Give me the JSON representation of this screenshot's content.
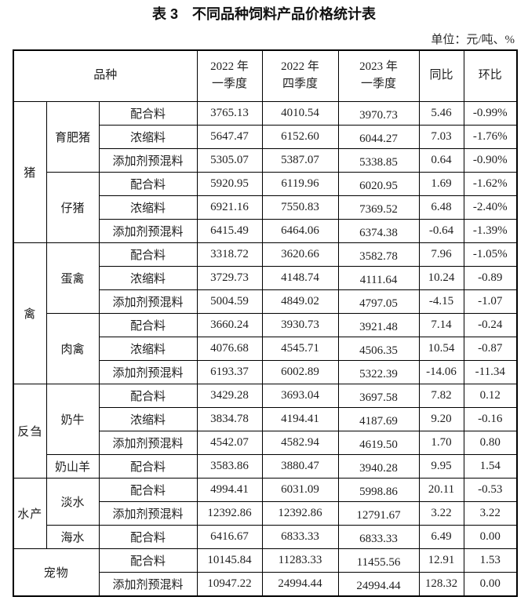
{
  "title": "表 3　不同品种饲料产品价格统计表",
  "unit_label": "单位：元/吨、%",
  "colors": {
    "text": "#1f1f1f",
    "border": "#000000",
    "background": "#ffffff"
  },
  "table": {
    "headers": {
      "variety": "品种",
      "q1_2022": "2022 年\n一季度",
      "q4_2022": "2022 年\n四季度",
      "q1_2023": "2023 年\n一季度",
      "yoy": "同比",
      "qoq": "环比"
    },
    "groups": [
      {
        "name": "猪",
        "subgroups": [
          {
            "name": "育肥猪",
            "rows": [
              {
                "product": "配合料",
                "q1_2022": "3765.13",
                "q4_2022": "4010.54",
                "q1_2023": "3970.73",
                "yoy": "5.46",
                "qoq": "-0.99%"
              },
              {
                "product": "浓缩料",
                "q1_2022": "5647.47",
                "q4_2022": "6152.60",
                "q1_2023": "6044.27",
                "yoy": "7.03",
                "qoq": "-1.76%"
              },
              {
                "product": "添加剂预混料",
                "q1_2022": "5305.07",
                "q4_2022": "5387.07",
                "q1_2023": "5338.85",
                "yoy": "0.64",
                "qoq": "-0.90%"
              }
            ]
          },
          {
            "name": "仔猪",
            "rows": [
              {
                "product": "配合料",
                "q1_2022": "5920.95",
                "q4_2022": "6119.96",
                "q1_2023": "6020.95",
                "yoy": "1.69",
                "qoq": "-1.62%"
              },
              {
                "product": "浓缩料",
                "q1_2022": "6921.16",
                "q4_2022": "7550.83",
                "q1_2023": "7369.52",
                "yoy": "6.48",
                "qoq": "-2.40%"
              },
              {
                "product": "添加剂预混料",
                "q1_2022": "6415.49",
                "q4_2022": "6464.06",
                "q1_2023": "6374.38",
                "yoy": "-0.64",
                "qoq": "-1.39%"
              }
            ]
          }
        ]
      },
      {
        "name": "禽",
        "subgroups": [
          {
            "name": "蛋禽",
            "rows": [
              {
                "product": "配合料",
                "q1_2022": "3318.72",
                "q4_2022": "3620.66",
                "q1_2023": "3582.78",
                "yoy": "7.96",
                "qoq": "-1.05%"
              },
              {
                "product": "浓缩料",
                "q1_2022": "3729.73",
                "q4_2022": "4148.74",
                "q1_2023": "4111.64",
                "yoy": "10.24",
                "qoq": "-0.89"
              },
              {
                "product": "添加剂预混料",
                "q1_2022": "5004.59",
                "q4_2022": "4849.02",
                "q1_2023": "4797.05",
                "yoy": "-4.15",
                "qoq": "-1.07"
              }
            ]
          },
          {
            "name": "肉禽",
            "rows": [
              {
                "product": "配合料",
                "q1_2022": "3660.24",
                "q4_2022": "3930.73",
                "q1_2023": "3921.48",
                "yoy": "7.14",
                "qoq": "-0.24"
              },
              {
                "product": "浓缩料",
                "q1_2022": "4076.68",
                "q4_2022": "4545.71",
                "q1_2023": "4506.35",
                "yoy": "10.54",
                "qoq": "-0.87"
              },
              {
                "product": "添加剂预混料",
                "q1_2022": "6193.37",
                "q4_2022": "6002.89",
                "q1_2023": "5322.39",
                "yoy": "-14.06",
                "qoq": "-11.34"
              }
            ]
          }
        ]
      },
      {
        "name": "反刍",
        "subgroups": [
          {
            "name": "奶牛",
            "rows": [
              {
                "product": "配合料",
                "q1_2022": "3429.28",
                "q4_2022": "3693.04",
                "q1_2023": "3697.58",
                "yoy": "7.82",
                "qoq": "0.12"
              },
              {
                "product": "浓缩料",
                "q1_2022": "3834.78",
                "q4_2022": "4194.41",
                "q1_2023": "4187.69",
                "yoy": "9.20",
                "qoq": "-0.16"
              },
              {
                "product": "添加剂预混料",
                "q1_2022": "4542.07",
                "q4_2022": "4582.94",
                "q1_2023": "4619.50",
                "yoy": "1.70",
                "qoq": "0.80"
              }
            ]
          },
          {
            "name": "奶山羊",
            "rows": [
              {
                "product": "配合料",
                "q1_2022": "3583.86",
                "q4_2022": "3880.47",
                "q1_2023": "3940.28",
                "yoy": "9.95",
                "qoq": "1.54"
              }
            ]
          }
        ]
      },
      {
        "name": "水产",
        "subgroups": [
          {
            "name": "淡水",
            "rows": [
              {
                "product": "配合料",
                "q1_2022": "4994.41",
                "q4_2022": "6031.09",
                "q1_2023": "5998.86",
                "yoy": "20.11",
                "qoq": "-0.53"
              },
              {
                "product": "添加剂预混料",
                "q1_2022": "12392.86",
                "q4_2022": "12392.86",
                "q1_2023": "12791.67",
                "yoy": "3.22",
                "qoq": "3.22"
              }
            ]
          },
          {
            "name": "海水",
            "rows": [
              {
                "product": "配合料",
                "q1_2022": "6416.67",
                "q4_2022": "6833.33",
                "q1_2023": "6833.33",
                "yoy": "6.49",
                "qoq": "0.00"
              }
            ]
          }
        ]
      },
      {
        "name": "宠物",
        "subgroups": [
          {
            "name": null,
            "rows": [
              {
                "product": "配合料",
                "q1_2022": "10145.84",
                "q4_2022": "11283.33",
                "q1_2023": "11455.56",
                "yoy": "12.91",
                "qoq": "1.53"
              },
              {
                "product": "添加剂预混料",
                "q1_2022": "10947.22",
                "q4_2022": "24994.44",
                "q1_2023": "24994.44",
                "yoy": "128.32",
                "qoq": "0.00"
              }
            ]
          }
        ]
      }
    ]
  }
}
